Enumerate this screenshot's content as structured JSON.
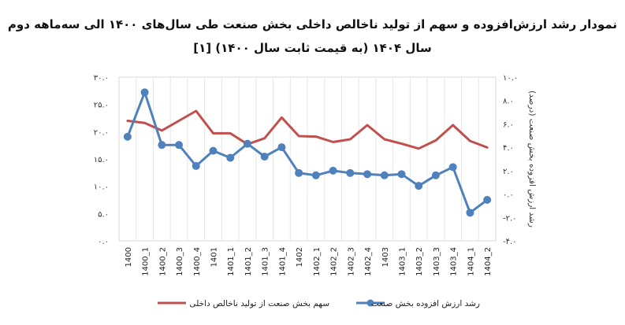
{
  "chart_data": {
    "type": "line",
    "title_line1": "نمودار رشد ارزش‌افزوده و سهم از تولید ناخالص داخلی بخش صنعت طی سال‌های ۱۴۰۰ الی سه‌ماهه دوم",
    "title_line2": "سال ۱۴۰۴ (به قیمت ثابت سال ۱۴۰۰) [۱]",
    "x": [
      "1400",
      "1400_1",
      "1400_2",
      "1400_3",
      "1400_4",
      "1401",
      "1401_1",
      "1401_2",
      "1401_3",
      "1401_4",
      "1402",
      "1402_1",
      "1402_2",
      "1402_3",
      "1402_4",
      "1403",
      "1403_1",
      "1403_2",
      "1403_3",
      "1403_4",
      "1404_1",
      "1404_2"
    ],
    "left_axis": {
      "ylim": [
        0,
        30
      ],
      "ticks": [
        0,
        5,
        10,
        15,
        20,
        25,
        30
      ],
      "tick_labels": [
        "۰.۰",
        "۵.۰",
        "۱۰.۰",
        "۱۵.۰",
        "۲۰.۰",
        "۲۵.۰",
        "۳۰.۰"
      ]
    },
    "right_axis": {
      "ylim": [
        -4,
        10
      ],
      "ticks": [
        -4,
        -2,
        0,
        2,
        4,
        6,
        8,
        10
      ],
      "tick_labels": [
        "-۴.۰",
        "-۲.۰",
        "۰.۰",
        "۲.۰",
        "۴.۰",
        "۶.۰",
        "۸.۰",
        "۱۰.۰"
      ],
      "label": "رشد ارزش افزوده بخش صنعت (درصد)"
    },
    "grid": true,
    "legend_position": "bottom",
    "series": [
      {
        "name": "سهم بخش صنعت از تولید ناخالص داخلی",
        "axis": "left",
        "color": "#c0504d",
        "marker": false,
        "values": [
          22.0,
          21.6,
          20.2,
          22.0,
          23.8,
          19.7,
          19.7,
          17.7,
          18.8,
          22.6,
          19.2,
          19.1,
          18.1,
          18.6,
          21.2,
          18.6,
          17.8,
          16.9,
          18.4,
          21.2,
          18.3,
          17.1
        ]
      },
      {
        "name": "رشد ارزش  افزوده بخش صنعت",
        "axis": "right",
        "color": "#4f81bd",
        "marker": true,
        "values": [
          4.9,
          8.7,
          4.2,
          4.2,
          2.4,
          3.7,
          3.1,
          4.3,
          3.2,
          4.0,
          1.8,
          1.6,
          2.0,
          1.8,
          1.7,
          1.6,
          1.7,
          0.7,
          1.6,
          2.3,
          -1.6,
          -0.5
        ]
      }
    ]
  }
}
